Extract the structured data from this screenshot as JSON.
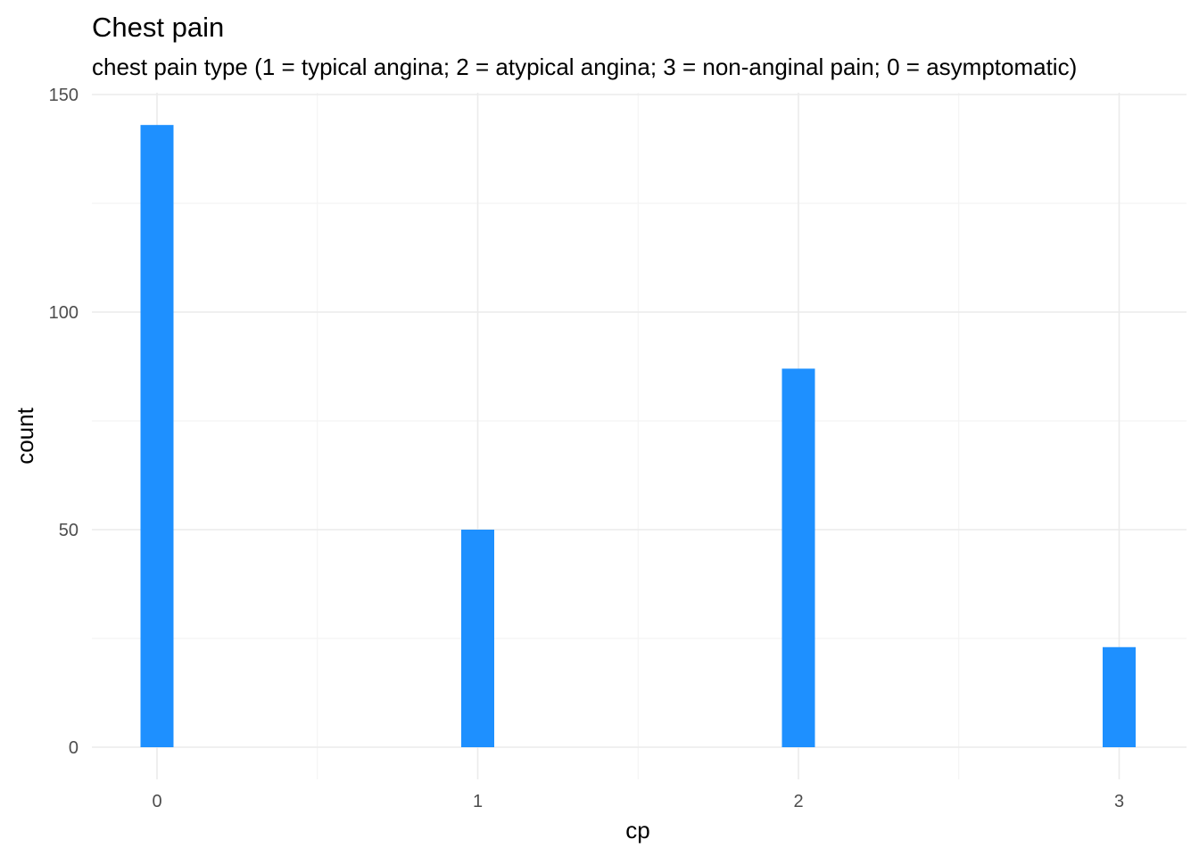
{
  "chart_data": {
    "type": "bar",
    "title": "Chest pain",
    "subtitle": "chest pain type (1 = typical angina; 2 = atypical angina; 3 = non-anginal pain; 0 = asymptomatic)",
    "xlabel": "cp",
    "ylabel": "count",
    "x": [
      0,
      1,
      2,
      3
    ],
    "values": [
      143,
      50,
      87,
      23
    ],
    "xlim": [
      -0.2,
      3.2
    ],
    "ylim": [
      -7,
      150
    ],
    "x_ticks": [
      0,
      1,
      2,
      3
    ],
    "y_ticks": [
      0,
      50,
      100,
      150
    ],
    "grid": true,
    "legend": "none",
    "bar_color": "#1E90FF"
  }
}
